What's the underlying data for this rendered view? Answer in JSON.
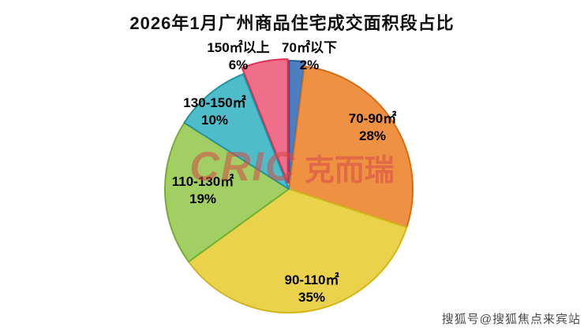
{
  "page": {
    "title": "2026年1月广州商品住宅成交面积段占比"
  },
  "chart_data": {
    "type": "pie",
    "title": "2026年1月广州商品住宅成交面积段占比",
    "legend_position": "none",
    "start_angle_deg": 0,
    "direction": "clockwise",
    "slices": [
      {
        "label": "70㎡以下",
        "pct": "2%",
        "value": 2,
        "color": "#4d7ebf",
        "edge": "#2a5d9c",
        "offset": 6
      },
      {
        "label": "70-90㎡",
        "pct": "28%",
        "value": 28,
        "color": "#ef9143",
        "edge": "#cf6d1d",
        "offset": 0
      },
      {
        "label": "90-110㎡",
        "pct": "35%",
        "value": 35,
        "color": "#ebd24c",
        "edge": "#d2b619",
        "offset": 0
      },
      {
        "label": "110-130㎡",
        "pct": "19%",
        "value": 19,
        "color": "#a2cf63",
        "edge": "#74b02c",
        "offset": 0
      },
      {
        "label": "130-150㎡",
        "pct": "10%",
        "value": 10,
        "color": "#4fbcca",
        "edge": "#1f96a6",
        "offset": 0
      },
      {
        "label": "150㎡以上",
        "pct": "6%",
        "value": 6,
        "color": "#ef6f8b",
        "edge": "#de2f56",
        "offset": 8
      }
    ]
  },
  "watermarks": {
    "center_logo": "CRIC",
    "center_text": "克而瑞",
    "bottom_right": "搜狐号@搜狐焦点来宾站"
  }
}
